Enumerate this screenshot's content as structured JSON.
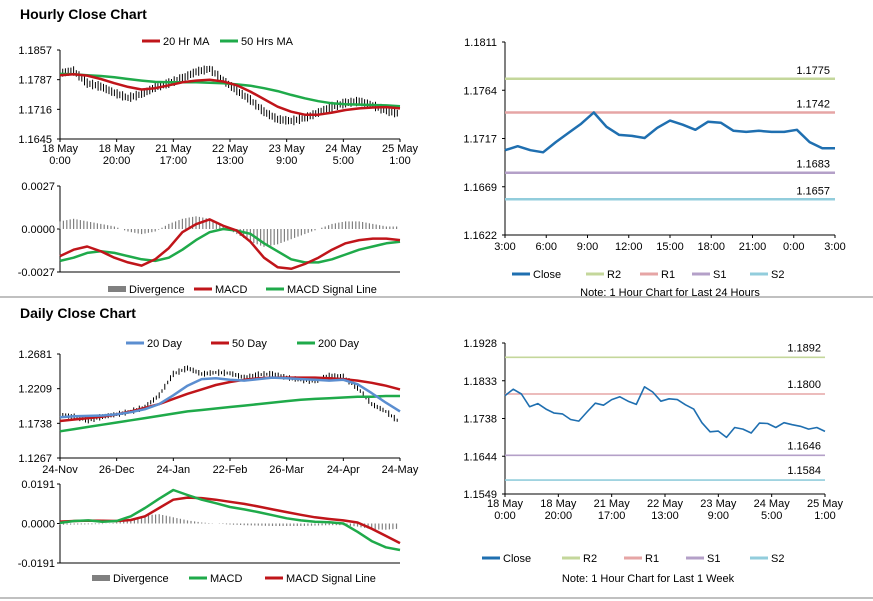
{
  "sections": {
    "hourly_title": "Hourly Close Chart",
    "daily_title": "Daily Close Chart"
  },
  "colors": {
    "ma_red": "#c0151a",
    "ma_green": "#1faa4a",
    "ma_blue": "#5b8ed0",
    "close_blue": "#1f6fb0",
    "r2": "#c4d79b",
    "r1": "#e6a5a5",
    "s1": "#b4a0c8",
    "s2": "#92cddc",
    "divergence": "#808080"
  },
  "chart_data": [
    {
      "id": "hourly_price",
      "type": "line",
      "title": "",
      "ylim": [
        1.1645,
        1.1857
      ],
      "ytick_labels": [
        "1.1857",
        "1.1787",
        "1.1716",
        "1.1645"
      ],
      "xtick_labels": [
        [
          "18 May",
          "0:00"
        ],
        [
          "18 May",
          "20:00"
        ],
        [
          "21 May",
          "17:00"
        ],
        [
          "22 May",
          "13:00"
        ],
        [
          "23 May",
          "9:00"
        ],
        [
          "24 May",
          "5:00"
        ],
        [
          "25 May",
          "1:00"
        ]
      ],
      "series": [
        {
          "name": "20 Hr MA",
          "values": [
            1.1797,
            1.1799,
            1.1796,
            1.1788,
            1.1778,
            1.1769,
            1.1763,
            1.1766,
            1.1773,
            1.178,
            1.1784,
            1.1786,
            1.1782,
            1.1773,
            1.1758,
            1.174,
            1.1722,
            1.171,
            1.1703,
            1.1703,
            1.1708,
            1.1714,
            1.1718,
            1.172,
            1.1721,
            1.1718
          ]
        },
        {
          "name": "50 Hrs MA",
          "values": [
            1.18,
            1.1799,
            1.1797,
            1.1795,
            1.1792,
            1.1788,
            1.1784,
            1.1781,
            1.178,
            1.178,
            1.178,
            1.1779,
            1.1778,
            1.1775,
            1.1772,
            1.1766,
            1.1759,
            1.175,
            1.1742,
            1.1735,
            1.173,
            1.1728,
            1.1727,
            1.1726,
            1.1725,
            1.1723
          ]
        },
        {
          "name": "Close",
          "values": [
            1.1802,
            1.1807,
            1.1778,
            1.177,
            1.1755,
            1.1743,
            1.1752,
            1.1768,
            1.1778,
            1.179,
            1.1805,
            1.1812,
            1.1785,
            1.176,
            1.1738,
            1.171,
            1.1692,
            1.1688,
            1.1695,
            1.1708,
            1.1722,
            1.1731,
            1.1735,
            1.1725,
            1.1712,
            1.1705
          ]
        }
      ]
    },
    {
      "id": "hourly_macd",
      "type": "line",
      "ylim": [
        -0.0027,
        0.0027
      ],
      "ytick_labels": [
        "0.0027",
        "0.0000",
        "-0.0027"
      ],
      "series": [
        {
          "name": "Divergence",
          "values": [
            0.0003,
            0.0004,
            0.0003,
            0.0002,
            0.0001,
            -0.0001,
            -0.0002,
            -0.0001,
            0.0002,
            0.0004,
            0.0005,
            0.0004,
            0.0001,
            -0.0002,
            -0.0005,
            -0.0007,
            -0.0006,
            -0.0004,
            -0.0002,
            0.0,
            0.0002,
            0.0003,
            0.0003,
            0.0002,
            0.0001,
            0.0001
          ]
        },
        {
          "name": "MACD",
          "values": [
            -0.0017,
            -0.0013,
            -0.0011,
            -0.0014,
            -0.0018,
            -0.0021,
            -0.0023,
            -0.0019,
            -0.0012,
            -0.0002,
            0.0003,
            0.0006,
            0.0002,
            -0.0001,
            -0.0008,
            -0.0018,
            -0.0024,
            -0.0025,
            -0.0022,
            -0.0018,
            -0.0013,
            -0.0009,
            -0.0007,
            -0.0006,
            -0.0006,
            -0.0007
          ]
        },
        {
          "name": "MACD Signal Line",
          "values": [
            -0.002,
            -0.0018,
            -0.0015,
            -0.0014,
            -0.0015,
            -0.0017,
            -0.0019,
            -0.002,
            -0.0018,
            -0.0013,
            -0.0007,
            -0.0002,
            0.0,
            -0.0001,
            -0.0003,
            -0.0009,
            -0.0014,
            -0.0019,
            -0.0021,
            -0.0021,
            -0.0019,
            -0.0016,
            -0.0013,
            -0.0011,
            -0.0009,
            -0.0008
          ]
        }
      ]
    },
    {
      "id": "hourly_levels",
      "type": "line",
      "ylim": [
        1.1622,
        1.1811
      ],
      "ytick_labels": [
        "1.1811",
        "1.1764",
        "1.1717",
        "1.1669",
        "1.1622"
      ],
      "xtick_labels": [
        "3:00",
        "6:00",
        "9:00",
        "12:00",
        "15:00",
        "18:00",
        "21:00",
        "0:00",
        "3:00"
      ],
      "levels": [
        {
          "name": "R2",
          "value": 1.1775,
          "label": "1.1775"
        },
        {
          "name": "R1",
          "value": 1.1742,
          "label": "1.1742"
        },
        {
          "name": "S1",
          "value": 1.1683,
          "label": "1.1683"
        },
        {
          "name": "S2",
          "value": 1.1657,
          "label": "1.1657"
        }
      ],
      "close": {
        "name": "Close",
        "values": [
          1.1705,
          1.1709,
          1.1705,
          1.1703,
          1.1713,
          1.1722,
          1.1731,
          1.1742,
          1.1728,
          1.172,
          1.1719,
          1.1717,
          1.1727,
          1.1734,
          1.173,
          1.1725,
          1.1733,
          1.1732,
          1.1724,
          1.1723,
          1.1724,
          1.1723,
          1.1723,
          1.1725,
          1.1713,
          1.1707,
          1.1707
        ]
      },
      "note": "Note: 1 Hour Chart for Last 24 Hours"
    },
    {
      "id": "daily_price",
      "type": "line",
      "ylim": [
        1.1267,
        1.2681
      ],
      "ytick_labels": [
        "1.2681",
        "1.2209",
        "1.1738",
        "1.1267"
      ],
      "xtick_labels": [
        "24-Nov",
        "26-Dec",
        "24-Jan",
        "22-Feb",
        "26-Mar",
        "24-Apr",
        "24-May"
      ],
      "series": [
        {
          "name": "20 Day",
          "values": [
            1.182,
            1.1835,
            1.184,
            1.1845,
            1.186,
            1.189,
            1.193,
            1.2,
            1.212,
            1.225,
            1.234,
            1.235,
            1.233,
            1.232,
            1.234,
            1.236,
            1.235,
            1.234,
            1.233,
            1.232,
            1.233,
            1.227,
            1.215,
            1.202,
            1.19
          ]
        },
        {
          "name": "50 Day",
          "values": [
            1.177,
            1.179,
            1.181,
            1.183,
            1.186,
            1.19,
            1.195,
            1.2,
            1.207,
            1.214,
            1.22,
            1.226,
            1.23,
            1.233,
            1.235,
            1.236,
            1.236,
            1.236,
            1.236,
            1.235,
            1.234,
            1.232,
            1.229,
            1.225,
            1.22
          ]
        },
        {
          "name": "200 Day",
          "values": [
            1.163,
            1.166,
            1.169,
            1.172,
            1.175,
            1.178,
            1.181,
            1.184,
            1.187,
            1.19,
            1.192,
            1.194,
            1.196,
            1.198,
            1.2,
            1.202,
            1.204,
            1.206,
            1.207,
            1.208,
            1.209,
            1.21,
            1.21,
            1.211,
            1.211
          ]
        },
        {
          "name": "Close",
          "values": [
            1.185,
            1.183,
            1.178,
            1.183,
            1.186,
            1.19,
            1.196,
            1.212,
            1.241,
            1.249,
            1.241,
            1.243,
            1.242,
            1.236,
            1.24,
            1.241,
            1.236,
            1.233,
            1.231,
            1.239,
            1.237,
            1.222,
            1.2,
            1.19,
            1.175
          ]
        }
      ]
    },
    {
      "id": "daily_macd",
      "type": "line",
      "ylim": [
        -0.0191,
        0.0191
      ],
      "ytick_labels": [
        "0.0191",
        "0.0000",
        "-0.0191"
      ],
      "series": [
        {
          "name": "Divergence",
          "values": [
            -0.0006,
            -0.0005,
            -0.0004,
            -0.0003,
            0.0005,
            0.002,
            0.004,
            0.0045,
            0.003,
            0.0015,
            0.0005,
            0.0,
            -0.0005,
            -0.0008,
            -0.001,
            -0.0012,
            -0.0012,
            -0.0012,
            -0.001,
            -0.0008,
            -0.0008,
            -0.0015,
            -0.0028,
            -0.003,
            -0.0025
          ]
        },
        {
          "name": "MACD",
          "values": [
            0.0003,
            0.0012,
            0.0015,
            0.0008,
            0.0012,
            0.0035,
            0.0075,
            0.012,
            0.0162,
            0.0138,
            0.0115,
            0.0098,
            0.008,
            0.0068,
            0.0055,
            0.004,
            0.0025,
            0.0015,
            0.0008,
            0.0006,
            0.0,
            -0.004,
            -0.0085,
            -0.0115,
            -0.0128
          ]
        },
        {
          "name": "MACD Signal Line",
          "values": [
            0.0009,
            0.0012,
            0.0014,
            0.0013,
            0.0012,
            0.0017,
            0.0035,
            0.0075,
            0.0115,
            0.0125,
            0.0123,
            0.0115,
            0.0105,
            0.0095,
            0.0082,
            0.0068,
            0.0055,
            0.0042,
            0.003,
            0.0022,
            0.0015,
            0.0005,
            -0.0025,
            -0.006,
            -0.0095
          ]
        }
      ]
    },
    {
      "id": "weekly_levels",
      "type": "line",
      "ylim": [
        1.1549,
        1.1928
      ],
      "ytick_labels": [
        "1.1928",
        "1.1833",
        "1.1738",
        "1.1644",
        "1.1549"
      ],
      "xtick_labels": [
        [
          "18 May",
          "0:00"
        ],
        [
          "18 May",
          "20:00"
        ],
        [
          "21 May",
          "17:00"
        ],
        [
          "22 May",
          "13:00"
        ],
        [
          "23 May",
          "9:00"
        ],
        [
          "24 May",
          "5:00"
        ],
        [
          "25 May",
          "1:00"
        ]
      ],
      "levels": [
        {
          "name": "R2",
          "value": 1.1892,
          "label": "1.1892"
        },
        {
          "name": "R1",
          "value": 1.18,
          "label": "1.1800"
        },
        {
          "name": "S1",
          "value": 1.1646,
          "label": "1.1646"
        },
        {
          "name": "S2",
          "value": 1.1584,
          "label": "1.1584"
        }
      ],
      "close": {
        "name": "Close",
        "values": [
          1.1796,
          1.1812,
          1.18,
          1.1768,
          1.1776,
          1.1762,
          1.1752,
          1.175,
          1.1736,
          1.1732,
          1.1755,
          1.1777,
          1.1772,
          1.1786,
          1.1793,
          1.1782,
          1.1774,
          1.1818,
          1.1805,
          1.1782,
          1.1788,
          1.1786,
          1.1773,
          1.1762,
          1.1728,
          1.1705,
          1.1707,
          1.1691,
          1.1716,
          1.1712,
          1.1702,
          1.1727,
          1.1726,
          1.1716,
          1.1728,
          1.1723,
          1.1719,
          1.1712,
          1.1716,
          1.1706
        ]
      },
      "note": "Note: 1 Hour Chart for Last 1 Week"
    }
  ],
  "legends": {
    "hourly_price": [
      "20 Hr MA",
      "50 Hrs MA"
    ],
    "hourly_macd": [
      "Divergence",
      "MACD",
      "MACD Signal Line"
    ],
    "hourly_levels": [
      "Close",
      "R2",
      "R1",
      "S1",
      "S2"
    ],
    "daily_price": [
      "20 Day",
      "50 Day",
      "200 Day"
    ],
    "daily_macd": [
      "Divergence",
      "MACD",
      "MACD Signal Line"
    ],
    "weekly_levels": [
      "Close",
      "R2",
      "R1",
      "S1",
      "S2"
    ]
  }
}
